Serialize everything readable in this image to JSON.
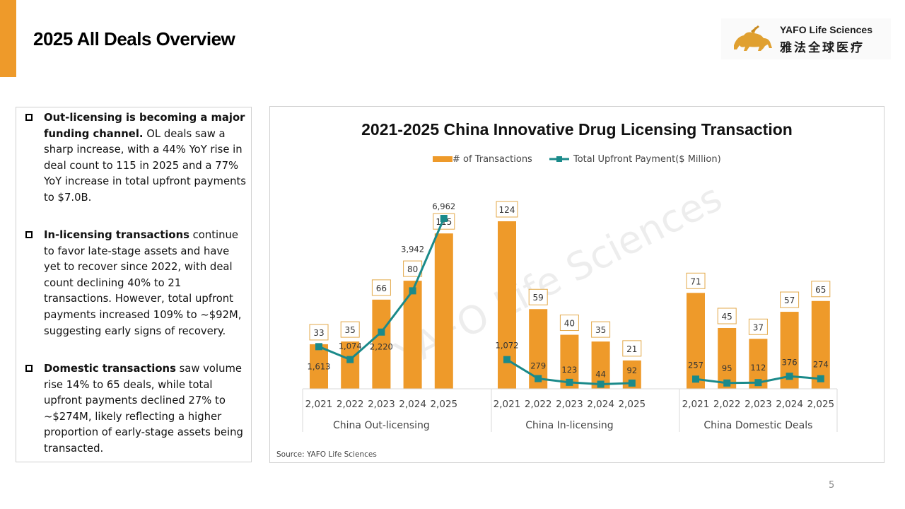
{
  "header": {
    "title": "2025 All Deals Overview",
    "accent_color": "#EE9A2A"
  },
  "logo": {
    "name_en": "YAFO Life Sciences",
    "name_cn": "雅法全球医疗",
    "icon": "lion-icon"
  },
  "bullets": [
    {
      "bold": "Out-licensing is becoming a major funding channel.",
      "text": " OL deals saw a sharp increase, with a 44% YoY rise in deal count to 115 in 2025 and a 77% YoY increase in total upfront payments to $7.0B."
    },
    {
      "bold": "In-licensing transactions",
      "text": " continue to favor late-stage assets and have yet to recover since 2022, with deal count declining 40% to 21 transactions. However, total upfront payments increased 109% to ~$92M, suggesting early signs of recovery."
    },
    {
      "bold": "Domestic transactions",
      "text": " saw volume rise 14% to 65 deals, while total upfront payments declined 27% to ~$274M, likely reflecting a higher proportion of early-stage assets being transacted."
    }
  ],
  "chart_data": {
    "type": "bar",
    "title": "2021-2025 China Innovative Drug Licensing Transaction",
    "source": "Source: YAFO Life Sciences",
    "watermark": "YAFO Life Sciences",
    "xlabel": "",
    "ylabel": "",
    "grid": false,
    "legend_position": "top-center",
    "legend": [
      "# of Transactions",
      "Total Upfront Payment($ Million)"
    ],
    "colors": {
      "bars": "#EE9A2A",
      "line": "#1A8A8A"
    },
    "groups": [
      {
        "name": "China Out-licensing",
        "categories": [
          "2,021",
          "2,022",
          "2,023",
          "2,024",
          "2,025"
        ],
        "transactions": [
          33,
          35,
          66,
          80,
          115
        ],
        "upfront_payment_musd": [
          1613,
          1074,
          2220,
          3942,
          6962
        ]
      },
      {
        "name": "China In-licensing",
        "categories": [
          "2,021",
          "2,022",
          "2,023",
          "2,024",
          "2,025"
        ],
        "transactions": [
          124,
          59,
          40,
          35,
          21
        ],
        "upfront_payment_musd": [
          1072,
          279,
          123,
          44,
          92
        ]
      },
      {
        "name": "China Domestic Deals",
        "categories": [
          "2,021",
          "2,022",
          "2,023",
          "2,024",
          "2,025"
        ],
        "transactions": [
          71,
          45,
          37,
          57,
          65
        ],
        "upfront_payment_musd": [
          257,
          95,
          112,
          376,
          274
        ]
      }
    ],
    "primary_axis": {
      "series": "# of Transactions",
      "ylim": [
        0,
        124
      ],
      "visible": false
    },
    "secondary_axis": {
      "series": "Total Upfront Payment($ Million)",
      "ylim": [
        0,
        6962
      ],
      "visible": false
    }
  },
  "footer": {
    "page_number": "5"
  }
}
